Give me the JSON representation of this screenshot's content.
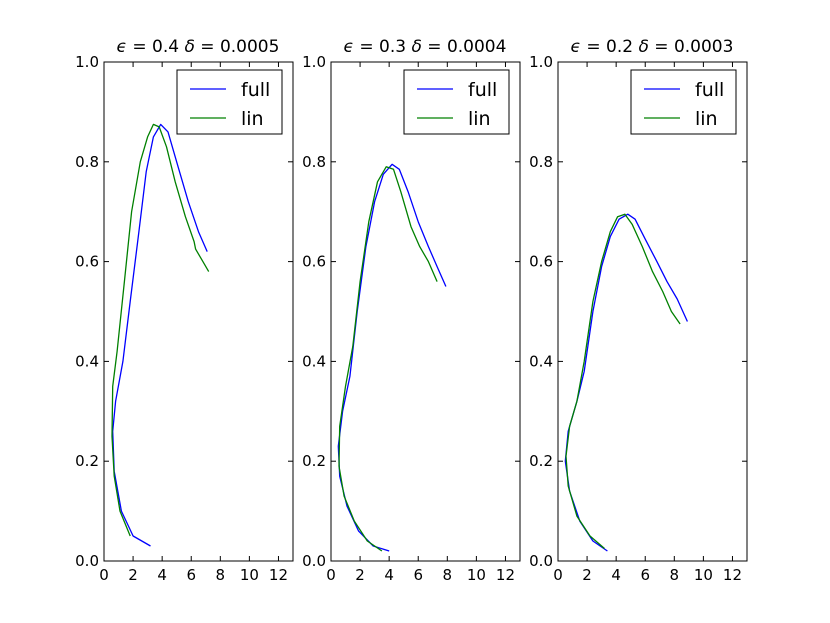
{
  "chart_data": [
    {
      "type": "line",
      "title": "ϵ = 0.4 δ = 0.0005",
      "title_parts": {
        "eps_symbol": "ϵ",
        "eps_value": " = 0.4 ",
        "delta_symbol": "δ",
        "delta_value": " = 0.0005"
      },
      "xlabel": "",
      "ylabel": "",
      "xlim": [
        0,
        13
      ],
      "ylim": [
        0,
        1.0
      ],
      "xticks": [
        0,
        2,
        4,
        6,
        8,
        10,
        12
      ],
      "yticks": [
        0.0,
        0.2,
        0.4,
        0.6,
        0.8,
        1.0
      ],
      "xtick_labels": [
        "0",
        "2",
        "4",
        "6",
        "8",
        "10",
        "12"
      ],
      "ytick_labels": [
        "0.0",
        "0.2",
        "0.4",
        "0.6",
        "0.8",
        "1.0"
      ],
      "legend": {
        "position": "top-right",
        "entries": [
          "full",
          "lin"
        ]
      },
      "series": [
        {
          "name": "full",
          "color": "#0000ff",
          "points": [
            [
              3.2,
              0.03
            ],
            [
              2.0,
              0.05
            ],
            [
              1.2,
              0.1
            ],
            [
              0.7,
              0.18
            ],
            [
              0.6,
              0.26
            ],
            [
              0.8,
              0.32
            ],
            [
              1.3,
              0.4
            ],
            [
              1.8,
              0.52
            ],
            [
              2.4,
              0.66
            ],
            [
              2.9,
              0.78
            ],
            [
              3.4,
              0.85
            ],
            [
              3.9,
              0.875
            ],
            [
              4.4,
              0.86
            ],
            [
              5.1,
              0.79
            ],
            [
              5.8,
              0.72
            ],
            [
              6.5,
              0.66
            ],
            [
              7.1,
              0.62
            ]
          ]
        },
        {
          "name": "lin",
          "color": "#008000",
          "points": [
            [
              1.8,
              0.05
            ],
            [
              1.1,
              0.1
            ],
            [
              0.7,
              0.17
            ],
            [
              0.55,
              0.25
            ],
            [
              0.6,
              0.35
            ],
            [
              0.9,
              0.42
            ],
            [
              1.4,
              0.56
            ],
            [
              1.9,
              0.7
            ],
            [
              2.5,
              0.8
            ],
            [
              3.0,
              0.85
            ],
            [
              3.4,
              0.875
            ],
            [
              3.8,
              0.87
            ],
            [
              4.3,
              0.83
            ],
            [
              4.9,
              0.76
            ],
            [
              5.6,
              0.69
            ],
            [
              6.2,
              0.64
            ],
            [
              6.3,
              0.625
            ],
            [
              6.8,
              0.6
            ],
            [
              7.2,
              0.58
            ]
          ]
        }
      ]
    },
    {
      "type": "line",
      "title": "ϵ = 0.3 δ = 0.0004",
      "title_parts": {
        "eps_symbol": "ϵ",
        "eps_value": " = 0.3 ",
        "delta_symbol": "δ",
        "delta_value": " = 0.0004"
      },
      "xlabel": "",
      "ylabel": "",
      "xlim": [
        0,
        13
      ],
      "ylim": [
        0,
        1.0
      ],
      "xticks": [
        0,
        2,
        4,
        6,
        8,
        10,
        12
      ],
      "yticks": [
        0.0,
        0.2,
        0.4,
        0.6,
        0.8,
        1.0
      ],
      "xtick_labels": [
        "0",
        "2",
        "4",
        "6",
        "8",
        "10",
        "12"
      ],
      "ytick_labels": [
        "0.0",
        "0.2",
        "0.4",
        "0.6",
        "0.8",
        "1.0"
      ],
      "legend": {
        "position": "top-right",
        "entries": [
          "full",
          "lin"
        ]
      },
      "series": [
        {
          "name": "full",
          "color": "#0000ff",
          "points": [
            [
              4.0,
              0.02
            ],
            [
              2.9,
              0.03
            ],
            [
              1.9,
              0.06
            ],
            [
              1.1,
              0.11
            ],
            [
              0.6,
              0.17
            ],
            [
              0.5,
              0.23
            ],
            [
              0.8,
              0.3
            ],
            [
              1.3,
              0.37
            ],
            [
              1.8,
              0.5
            ],
            [
              2.4,
              0.63
            ],
            [
              3.0,
              0.72
            ],
            [
              3.6,
              0.775
            ],
            [
              4.2,
              0.795
            ],
            [
              4.7,
              0.785
            ],
            [
              5.3,
              0.74
            ],
            [
              6.0,
              0.68
            ],
            [
              6.7,
              0.63
            ],
            [
              7.3,
              0.59
            ],
            [
              7.9,
              0.55
            ]
          ]
        },
        {
          "name": "lin",
          "color": "#008000",
          "points": [
            [
              3.5,
              0.02
            ],
            [
              2.5,
              0.04
            ],
            [
              1.6,
              0.08
            ],
            [
              0.9,
              0.13
            ],
            [
              0.55,
              0.19
            ],
            [
              0.6,
              0.27
            ],
            [
              1.0,
              0.35
            ],
            [
              1.5,
              0.43
            ],
            [
              2.0,
              0.56
            ],
            [
              2.6,
              0.68
            ],
            [
              3.2,
              0.76
            ],
            [
              3.8,
              0.79
            ],
            [
              4.3,
              0.785
            ],
            [
              4.8,
              0.74
            ],
            [
              5.5,
              0.67
            ],
            [
              6.1,
              0.63
            ],
            [
              6.7,
              0.6
            ],
            [
              7.3,
              0.56
            ]
          ]
        }
      ]
    },
    {
      "type": "line",
      "title": "ϵ = 0.2 δ = 0.0003",
      "title_parts": {
        "eps_symbol": "ϵ",
        "eps_value": " = 0.2 ",
        "delta_symbol": "δ",
        "delta_value": " = 0.0003"
      },
      "xlabel": "",
      "ylabel": "",
      "xlim": [
        0,
        13
      ],
      "ylim": [
        0,
        1.0
      ],
      "xticks": [
        0,
        2,
        4,
        6,
        8,
        10,
        12
      ],
      "yticks": [
        0.0,
        0.2,
        0.4,
        0.6,
        0.8,
        1.0
      ],
      "xtick_labels": [
        "0",
        "2",
        "4",
        "6",
        "8",
        "10",
        "12"
      ],
      "ytick_labels": [
        "0.0",
        "0.2",
        "0.4",
        "0.6",
        "0.8",
        "1.0"
      ],
      "legend": {
        "position": "top-right",
        "entries": [
          "full",
          "lin"
        ]
      },
      "series": [
        {
          "name": "full",
          "color": "#0000ff",
          "points": [
            [
              3.4,
              0.02
            ],
            [
              2.4,
              0.04
            ],
            [
              1.5,
              0.08
            ],
            [
              0.8,
              0.14
            ],
            [
              0.5,
              0.2
            ],
            [
              0.7,
              0.26
            ],
            [
              1.3,
              0.32
            ],
            [
              1.8,
              0.38
            ],
            [
              2.4,
              0.5
            ],
            [
              3.0,
              0.59
            ],
            [
              3.6,
              0.65
            ],
            [
              4.2,
              0.685
            ],
            [
              4.8,
              0.695
            ],
            [
              5.3,
              0.685
            ],
            [
              6.0,
              0.645
            ],
            [
              6.8,
              0.6
            ],
            [
              7.5,
              0.56
            ],
            [
              8.2,
              0.525
            ],
            [
              8.9,
              0.48
            ]
          ]
        },
        {
          "name": "lin",
          "color": "#008000",
          "points": [
            [
              3.2,
              0.025
            ],
            [
              2.2,
              0.05
            ],
            [
              1.3,
              0.09
            ],
            [
              0.7,
              0.15
            ],
            [
              0.55,
              0.21
            ],
            [
              0.8,
              0.27
            ],
            [
              1.3,
              0.32
            ],
            [
              1.8,
              0.4
            ],
            [
              2.4,
              0.52
            ],
            [
              3.0,
              0.6
            ],
            [
              3.6,
              0.66
            ],
            [
              4.1,
              0.69
            ],
            [
              4.6,
              0.695
            ],
            [
              5.1,
              0.675
            ],
            [
              5.8,
              0.63
            ],
            [
              6.5,
              0.58
            ],
            [
              7.2,
              0.54
            ],
            [
              7.8,
              0.5
            ],
            [
              8.4,
              0.475
            ]
          ]
        }
      ]
    }
  ]
}
